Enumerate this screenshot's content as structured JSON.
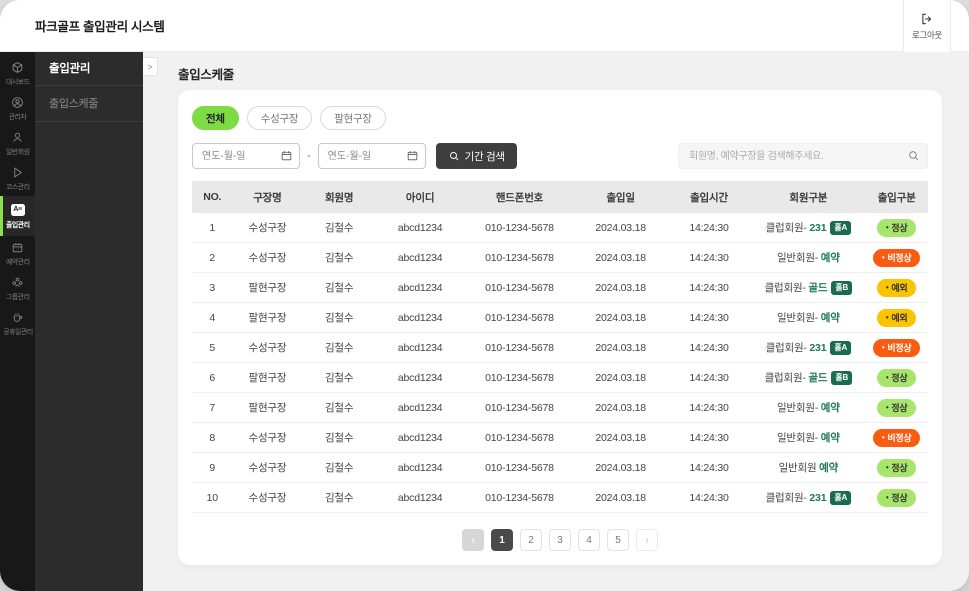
{
  "header": {
    "title": "파크골프 출입관리 시스템",
    "logout_label": "로그아웃"
  },
  "sidebar": {
    "rail": [
      {
        "label": "대시보드",
        "icon": "cube-icon",
        "active": false
      },
      {
        "label": "관리자",
        "icon": "admin-icon",
        "active": false
      },
      {
        "label": "일반회원",
        "icon": "person-icon",
        "active": false
      },
      {
        "label": "코스관리",
        "icon": "flag-icon",
        "active": false
      },
      {
        "label": "출입관리",
        "icon": "id-card-icon",
        "active": true
      },
      {
        "label": "예약관리",
        "icon": "calendar-icon",
        "active": false
      },
      {
        "label": "그룹관리",
        "icon": "group-icon",
        "active": false
      },
      {
        "label": "공휴일관리",
        "icon": "cup-icon",
        "active": false
      }
    ],
    "panel": {
      "heading": "출입관리",
      "items": [
        "출입스케줄"
      ],
      "collapse_glyph": ">"
    }
  },
  "page": {
    "title": "출입스케줄"
  },
  "filters": {
    "chips": [
      {
        "label": "전체",
        "active": true
      },
      {
        "label": "수성구장",
        "active": false
      },
      {
        "label": "팔현구장",
        "active": false
      }
    ],
    "date_from_placeholder": "연도-월-일",
    "date_to_placeholder": "연도-월-일",
    "separator": "-",
    "period_button_label": "기간 검색",
    "search_placeholder": "회원명, 예약구장을 검색해주세요."
  },
  "table": {
    "headers": [
      "NO.",
      "구장명",
      "회원명",
      "아이디",
      "핸드폰번호",
      "출입일",
      "출입시간",
      "회원구분",
      "출입구분"
    ],
    "rows": [
      {
        "no": "1",
        "court": "수성구장",
        "member": "김철수",
        "user_id": "abcd1234",
        "phone": "010-1234-5678",
        "date": "2024.03.18",
        "time": "14:24:30",
        "member_type": "클럽회원-",
        "member_value": "231",
        "hole_badge": "홀A",
        "status": "정상",
        "status_kind": "normal"
      },
      {
        "no": "2",
        "court": "수성구장",
        "member": "김철수",
        "user_id": "abcd1234",
        "phone": "010-1234-5678",
        "date": "2024.03.18",
        "time": "14:24:30",
        "member_type": "일반회원-",
        "member_value": "예약",
        "hole_badge": "",
        "status": "비정상",
        "status_kind": "abnormal"
      },
      {
        "no": "3",
        "court": "팔현구장",
        "member": "김철수",
        "user_id": "abcd1234",
        "phone": "010-1234-5678",
        "date": "2024.03.18",
        "time": "14:24:30",
        "member_type": "클럽회원-",
        "member_value": "골드",
        "hole_badge": "홀B",
        "status": "예외",
        "status_kind": "exception"
      },
      {
        "no": "4",
        "court": "팔현구장",
        "member": "김철수",
        "user_id": "abcd1234",
        "phone": "010-1234-5678",
        "date": "2024.03.18",
        "time": "14:24:30",
        "member_type": "일반회원-",
        "member_value": "예약",
        "hole_badge": "",
        "status": "예외",
        "status_kind": "exception"
      },
      {
        "no": "5",
        "court": "수성구장",
        "member": "김철수",
        "user_id": "abcd1234",
        "phone": "010-1234-5678",
        "date": "2024.03.18",
        "time": "14:24:30",
        "member_type": "클럽회원-",
        "member_value": "231",
        "hole_badge": "홀A",
        "status": "비정상",
        "status_kind": "abnormal"
      },
      {
        "no": "6",
        "court": "팔현구장",
        "member": "김철수",
        "user_id": "abcd1234",
        "phone": "010-1234-5678",
        "date": "2024.03.18",
        "time": "14:24:30",
        "member_type": "클럽회원-",
        "member_value": "골드",
        "hole_badge": "홀B",
        "status": "정상",
        "status_kind": "normal"
      },
      {
        "no": "7",
        "court": "팔현구장",
        "member": "김철수",
        "user_id": "abcd1234",
        "phone": "010-1234-5678",
        "date": "2024.03.18",
        "time": "14:24:30",
        "member_type": "일반회원-",
        "member_value": "예약",
        "hole_badge": "",
        "status": "정상",
        "status_kind": "normal"
      },
      {
        "no": "8",
        "court": "수성구장",
        "member": "김철수",
        "user_id": "abcd1234",
        "phone": "010-1234-5678",
        "date": "2024.03.18",
        "time": "14:24:30",
        "member_type": "일반회원-",
        "member_value": "예약",
        "hole_badge": "",
        "status": "비정상",
        "status_kind": "abnormal"
      },
      {
        "no": "9",
        "court": "수성구장",
        "member": "김철수",
        "user_id": "abcd1234",
        "phone": "010-1234-5678",
        "date": "2024.03.18",
        "time": "14:24:30",
        "member_type": "일반회원",
        "member_value": "예약",
        "hole_badge": "",
        "status": "정상",
        "status_kind": "normal"
      },
      {
        "no": "10",
        "court": "수성구장",
        "member": "김철수",
        "user_id": "abcd1234",
        "phone": "010-1234-5678",
        "date": "2024.03.18",
        "time": "14:24:30",
        "member_type": "클럽회원-",
        "member_value": "231",
        "hole_badge": "홀A",
        "status": "정상",
        "status_kind": "normal"
      }
    ]
  },
  "pagination": {
    "prev_glyph": "‹",
    "next_glyph": "›",
    "pages": [
      "1",
      "2",
      "3",
      "4",
      "5"
    ],
    "active_page": "1"
  },
  "colors": {
    "accent_green": "#7EDB43",
    "sidebar_active_green": "#8CE04E",
    "status_normal_bg": "#A7E56C",
    "status_abnormal_bg": "#F95C10",
    "status_exception_bg": "#FBC400",
    "hole_badge_bg": "#1A6B4F",
    "member_value_green": "#1E7A58"
  }
}
